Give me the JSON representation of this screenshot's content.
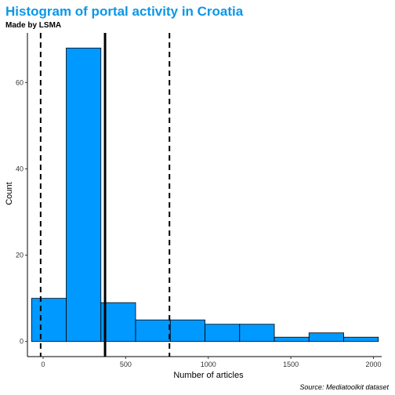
{
  "chart_data": {
    "type": "bar",
    "title": "Histogram of portal activity in Croatia",
    "subtitle": "Made by LSMA",
    "caption": "Source: Mediatoolkit dataset",
    "xlabel": "Number of articles",
    "ylabel": "Count",
    "title_color": "#0A97E7",
    "bar_fill": "#0099FF",
    "bar_stroke": "#000000",
    "xlim": [
      -95,
      2050
    ],
    "ylim": [
      -3.5,
      71.5
    ],
    "x_ticks": [
      0,
      500,
      1000,
      1500,
      2000
    ],
    "x_tick_labels": [
      "0",
      "500",
      "1000",
      "1500",
      "2000"
    ],
    "y_ticks": [
      0,
      20,
      40,
      60
    ],
    "y_tick_labels": [
      "0",
      "20",
      "40",
      "60"
    ],
    "grid": false,
    "bins": [
      {
        "x0": -70,
        "x1": 140,
        "count": 10
      },
      {
        "x0": 140,
        "x1": 350,
        "count": 68
      },
      {
        "x0": 350,
        "x1": 560,
        "count": 9
      },
      {
        "x0": 560,
        "x1": 770,
        "count": 5
      },
      {
        "x0": 770,
        "x1": 980,
        "count": 5
      },
      {
        "x0": 980,
        "x1": 1190,
        "count": 4
      },
      {
        "x0": 1190,
        "x1": 1400,
        "count": 4
      },
      {
        "x0": 1400,
        "x1": 1610,
        "count": 1
      },
      {
        "x0": 1610,
        "x1": 1820,
        "count": 2
      },
      {
        "x0": 1820,
        "x1": 2030,
        "count": 1
      }
    ],
    "reference_lines": [
      {
        "x": -15,
        "style": "dashed"
      },
      {
        "x": 375,
        "style": "solid"
      },
      {
        "x": 765,
        "style": "dashed"
      }
    ]
  }
}
